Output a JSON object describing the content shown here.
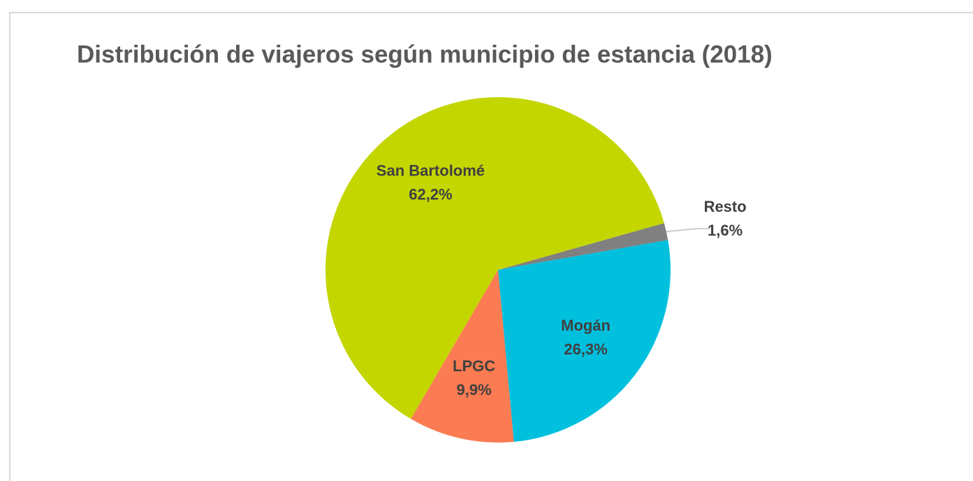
{
  "chart_data": {
    "type": "pie",
    "title": "Distribución de viajeros según municipio de estancia (2018)",
    "categories": [
      "Resto",
      "Mogán",
      "LPGC",
      "San Bartolomé"
    ],
    "values": [
      1.6,
      26.3,
      9.9,
      62.2
    ],
    "value_labels": [
      "1,6%",
      "26,3%",
      "9,9%",
      "62,2%"
    ],
    "colors": [
      "#808080",
      "#00c0de",
      "#fb7b52",
      "#c4d600"
    ]
  }
}
